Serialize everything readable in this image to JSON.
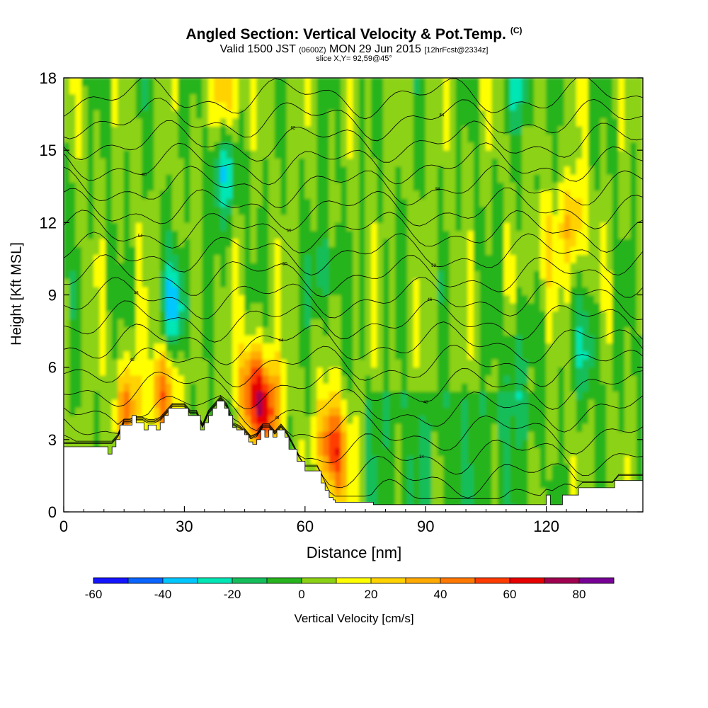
{
  "chart_data": {
    "type": "heatmap",
    "title": "Angled Section: Vertical Velocity & Pot.Temp.",
    "title_unit": "(C)",
    "subtitle_main": "Valid 1500 JST",
    "subtitle_utc": "(0600Z)",
    "subtitle_date": "MON 29 Jun 2015",
    "subtitle_fcst": "[12hrFcst@2334z]",
    "slice": "slice X,Y= 92,59@45°",
    "xlabel": "Distance [nm]",
    "ylabel": "Height [Kft MSL]",
    "xlim": [
      0,
      144
    ],
    "ylim": [
      0,
      18
    ],
    "xticks": [
      0,
      30,
      60,
      90,
      120
    ],
    "yticks": [
      0,
      3,
      6,
      9,
      12,
      15,
      18
    ],
    "colorbar": {
      "label": "Vertical Velocity [cm/s]",
      "ticks": [
        -60,
        -40,
        -20,
        0,
        20,
        40,
        60,
        80
      ],
      "bins": [
        -60,
        -50,
        -40,
        -30,
        -20,
        -10,
        0,
        10,
        20,
        30,
        40,
        50,
        60,
        70,
        80,
        90
      ],
      "colors": [
        "#1414ff",
        "#0a64ff",
        "#00c8ff",
        "#00e6b4",
        "#14be5a",
        "#28b41e",
        "#8cd214",
        "#ffff00",
        "#ffd200",
        "#ffaa00",
        "#ff7800",
        "#ff3c00",
        "#e60000",
        "#a00050",
        "#780096"
      ]
    },
    "terrain_profile": {
      "x": [
        0,
        10,
        11,
        12,
        13,
        14,
        17,
        18,
        20,
        21,
        23,
        24,
        25,
        26,
        28,
        31,
        34,
        35,
        36,
        37,
        38,
        39,
        40,
        41,
        42,
        43,
        45,
        46,
        47,
        48,
        49,
        50,
        51,
        52,
        53,
        55,
        56,
        58,
        60,
        63,
        64,
        65,
        66,
        67,
        67.5,
        77,
        99,
        113,
        120,
        121,
        124,
        125,
        128,
        131,
        137,
        144
      ],
      "terrain_kft": [
        2.7,
        2.7,
        2.4,
        2.7,
        3.0,
        3.6,
        4.0,
        3.7,
        3.4,
        3.6,
        3.4,
        3.7,
        4.0,
        4.3,
        4.3,
        4.0,
        3.4,
        3.7,
        4.0,
        4.3,
        4.6,
        4.6,
        4.3,
        4.0,
        3.5,
        3.4,
        3.2,
        2.9,
        2.8,
        3.0,
        3.4,
        3.1,
        3.4,
        3.1,
        3.4,
        3.1,
        2.6,
        2.1,
        1.7,
        1.7,
        1.2,
        0.9,
        0.6,
        0.5,
        0.4,
        0.3,
        0.3,
        0.3,
        0.7,
        0.3,
        0.7,
        0.7,
        1.0,
        1.0,
        1.3,
        1.3
      ]
    },
    "theta_contours_c": [
      30,
      32,
      34,
      36,
      38,
      40,
      42,
      44,
      46,
      48,
      50,
      52,
      54,
      56,
      58,
      60,
      62,
      64,
      66
    ],
    "velocity_features": [
      {
        "x": 16,
        "z": 4.3,
        "w": 40
      },
      {
        "x": 25,
        "z": 5.0,
        "w": 45
      },
      {
        "x": 41,
        "z": 17.5,
        "w": 30
      },
      {
        "x": 47,
        "z": 5.0,
        "w": 55
      },
      {
        "x": 51,
        "z": 4.2,
        "w": 50
      },
      {
        "x": 66,
        "z": 3.0,
        "w": 35
      },
      {
        "x": 68,
        "z": 2.2,
        "w": 35
      },
      {
        "x": 127,
        "z": 12.0,
        "w": 30
      },
      {
        "x": 120,
        "z": 11.0,
        "w": 20
      },
      {
        "x": 28,
        "z": 8.5,
        "w": -35
      },
      {
        "x": 40,
        "z": 14.0,
        "w": -30
      },
      {
        "x": 65,
        "z": 10.0,
        "w": -20
      },
      {
        "x": 112,
        "z": 6.0,
        "w": -20
      },
      {
        "x": 130,
        "z": 6.5,
        "w": -20
      },
      {
        "x": 114,
        "z": 18.0,
        "w": -25
      }
    ]
  }
}
